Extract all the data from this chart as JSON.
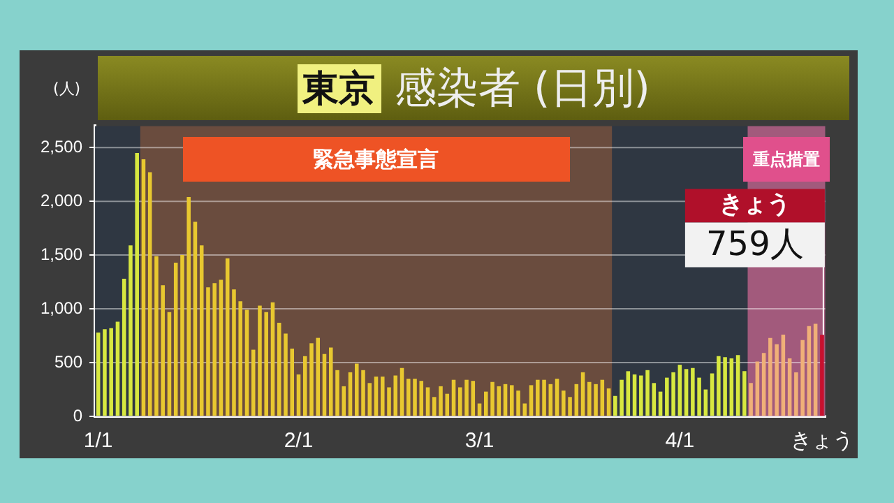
{
  "chart_data": {
    "type": "bar",
    "title": "東京 感染者 (日別)",
    "ylabel": "(人)",
    "categories": [
      "1/1",
      null,
      null,
      null,
      null,
      null,
      null,
      null,
      null,
      null,
      null,
      null,
      null,
      null,
      null,
      null,
      null,
      null,
      null,
      null,
      null,
      null,
      null,
      null,
      null,
      null,
      null,
      null,
      null,
      null,
      null,
      "2/1",
      null,
      null,
      null,
      null,
      null,
      null,
      null,
      null,
      null,
      null,
      null,
      null,
      null,
      null,
      null,
      null,
      null,
      null,
      null,
      null,
      null,
      null,
      null,
      null,
      null,
      null,
      null,
      "3/1",
      null,
      null,
      null,
      null,
      null,
      null,
      null,
      null,
      null,
      null,
      null,
      null,
      null,
      null,
      null,
      null,
      null,
      null,
      null,
      null,
      null,
      null,
      null,
      null,
      null,
      null,
      null,
      null,
      null,
      null,
      "4/1",
      null,
      null,
      null,
      null,
      null,
      null,
      null,
      null,
      null,
      null,
      null,
      null,
      null,
      null,
      null,
      null,
      null,
      null,
      null,
      null,
      null,
      "きょう"
    ],
    "values": [
      780,
      810,
      820,
      880,
      1280,
      1590,
      2450,
      2390,
      2270,
      1490,
      1220,
      970,
      1430,
      1500,
      2040,
      1810,
      1590,
      1200,
      1240,
      1270,
      1470,
      1180,
      1070,
      990,
      620,
      1030,
      970,
      1060,
      870,
      770,
      630,
      390,
      560,
      680,
      730,
      580,
      640,
      430,
      280,
      410,
      490,
      430,
      310,
      370,
      370,
      270,
      380,
      450,
      350,
      350,
      330,
      270,
      180,
      280,
      210,
      340,
      270,
      340,
      330,
      120,
      230,
      320,
      280,
      300,
      290,
      240,
      120,
      290,
      340,
      340,
      300,
      350,
      240,
      180,
      300,
      410,
      320,
      300,
      340,
      260,
      190,
      340,
      420,
      390,
      380,
      430,
      310,
      230,
      360,
      410,
      480,
      440,
      450,
      360,
      250,
      400,
      560,
      550,
      540,
      570,
      420,
      310,
      510,
      590,
      730,
      670,
      760,
      540,
      410,
      710,
      840,
      860,
      759
    ],
    "colors": [
      "#d8e840",
      "#d8e840",
      "#d8e840",
      "#d8e840",
      "#d8e840",
      "#d8e840",
      "#d8e840",
      "#e8c830",
      "#e8c830",
      "#e8c830",
      "#e8c830",
      "#e8c830",
      "#e8c830",
      "#e8c830",
      "#e8c830",
      "#e8c830",
      "#e8c830",
      "#e8c830",
      "#e8c830",
      "#e8c830",
      "#e8c830",
      "#e8c830",
      "#e8c830",
      "#e8c830",
      "#e8c830",
      "#e8c830",
      "#e8c830",
      "#e8c830",
      "#e8c830",
      "#e8c830",
      "#e8c830",
      "#e8c830",
      "#e8c830",
      "#e8c830",
      "#e8c830",
      "#e8c830",
      "#e8c830",
      "#e8c830",
      "#e8c830",
      "#e8c830",
      "#e8c830",
      "#e8c830",
      "#e8c830",
      "#e8c830",
      "#e8c830",
      "#e8c830",
      "#e8c830",
      "#e8c830",
      "#e8c830",
      "#e8c830",
      "#e8c830",
      "#e8c830",
      "#e8c830",
      "#e8c830",
      "#e8c830",
      "#e8c830",
      "#e8c830",
      "#e8c830",
      "#e8c830",
      "#e8c830",
      "#e8c830",
      "#e8c830",
      "#e8c830",
      "#e8c830",
      "#e8c830",
      "#e8c830",
      "#e8c830",
      "#e8c830",
      "#e8c830",
      "#e8c830",
      "#e8c830",
      "#e8c830",
      "#e8c830",
      "#e8c830",
      "#e8c830",
      "#e8c830",
      "#e8c830",
      "#e8c830",
      "#e8c830",
      "#e8c830",
      "#d8e840",
      "#d8e840",
      "#d8e840",
      "#d8e840",
      "#d8e840",
      "#d8e840",
      "#d8e840",
      "#d8e840",
      "#d8e840",
      "#d8e840",
      "#d8e840",
      "#d8e840",
      "#d8e840",
      "#d8e840",
      "#d8e840",
      "#d8e840",
      "#d8e840",
      "#d8e840",
      "#d8e840",
      "#d8e840",
      "#d8e840",
      "#f0b078",
      "#f0b078",
      "#f0b078",
      "#f0b078",
      "#f0b078",
      "#f0b078",
      "#f0b078",
      "#f0b078",
      "#f0b078",
      "#f0b078",
      "#f0b078",
      "#c8102e"
    ],
    "ylim": [
      0,
      2700
    ],
    "yticks": [
      0,
      500,
      {
        "value": 1000,
        "label": "1,000"
      },
      {
        "value": 1500,
        "label": "1,500"
      },
      {
        "value": 2000,
        "label": "2,000"
      },
      {
        "value": 2500,
        "label": "2,500"
      }
    ],
    "grid": "y",
    "legend": false,
    "annotations": [
      "緊急事態宣言",
      "重点措置",
      {
        "text": "きょう 759人",
        "x": "きょう",
        "y": 759
      }
    ]
  }
}
